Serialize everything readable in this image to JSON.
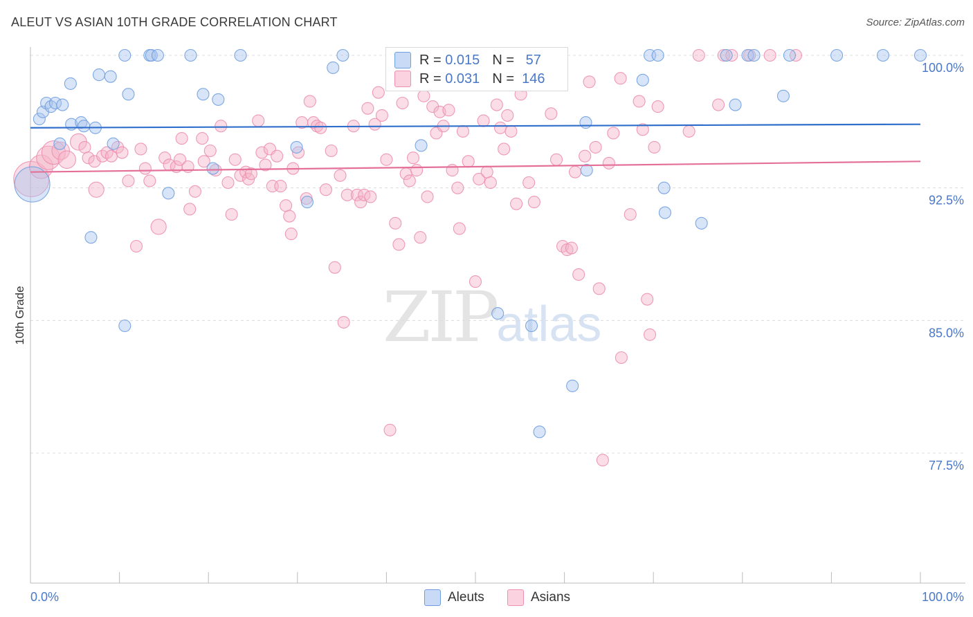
{
  "title": "ALEUT VS ASIAN 10TH GRADE CORRELATION CHART",
  "source": "Source: ZipAtlas.com",
  "watermark": {
    "zip": "ZIP",
    "atlas": "atlas"
  },
  "legend": {
    "rows": [
      {
        "r_label": "R =",
        "r_value": "0.015",
        "n_label": "N =",
        "n_value": "57",
        "color": "#a9c4ee"
      },
      {
        "r_label": "R =",
        "r_value": "0.031",
        "n_label": "N =",
        "n_value": "146",
        "color": "#f5b3c8"
      }
    ]
  },
  "bottom_legend": [
    {
      "label": "Aleuts",
      "color": "#a9c4ee"
    },
    {
      "label": "Asians",
      "color": "#f5b3c8"
    }
  ],
  "chart_data": {
    "type": "scatter",
    "title": "ALEUT VS ASIAN 10TH GRADE CORRELATION CHART",
    "xlabel": "",
    "ylabel": "10th Grade",
    "xlim": [
      0,
      100
    ],
    "ylim": [
      70.5,
      101
    ],
    "x_tick_labels": [
      "0.0%",
      "100.0%"
    ],
    "y_ticks": [
      77.5,
      85.0,
      92.5,
      100.0
    ],
    "y_tick_labels": [
      "77.5%",
      "85.0%",
      "92.5%",
      "100.0%"
    ],
    "grid": true,
    "series": [
      {
        "name": "Aleuts",
        "color": "#6f9ee0",
        "fill": "#a9c4ee",
        "trend": {
          "x": [
            0,
            100
          ],
          "y": [
            95.9,
            96.1
          ]
        },
        "points": [
          {
            "x": 0.2,
            "y": 92.7,
            "s": 3
          },
          {
            "x": 1,
            "y": 96.4
          },
          {
            "x": 1.4,
            "y": 96.8
          },
          {
            "x": 1.8,
            "y": 97.3
          },
          {
            "x": 2.3,
            "y": 97.1
          },
          {
            "x": 2.8,
            "y": 97.3
          },
          {
            "x": 3.6,
            "y": 97.2
          },
          {
            "x": 4.5,
            "y": 98.4
          },
          {
            "x": 4.6,
            "y": 96.1
          },
          {
            "x": 5.7,
            "y": 96.2
          },
          {
            "x": 6.0,
            "y": 96.0
          },
          {
            "x": 7.3,
            "y": 95.9
          },
          {
            "x": 7.7,
            "y": 98.9
          },
          {
            "x": 9.0,
            "y": 98.8
          },
          {
            "x": 3.3,
            "y": 95.0
          },
          {
            "x": 9.3,
            "y": 95.0
          },
          {
            "x": 10.6,
            "y": 100
          },
          {
            "x": 11.0,
            "y": 97.8
          },
          {
            "x": 13.4,
            "y": 100
          },
          {
            "x": 13.6,
            "y": 100
          },
          {
            "x": 14.3,
            "y": 100
          },
          {
            "x": 15.5,
            "y": 92.2
          },
          {
            "x": 18.0,
            "y": 100
          },
          {
            "x": 19.4,
            "y": 97.8
          },
          {
            "x": 20.5,
            "y": 93.6
          },
          {
            "x": 21.1,
            "y": 97.5
          },
          {
            "x": 23.6,
            "y": 100
          },
          {
            "x": 29.9,
            "y": 94.8
          },
          {
            "x": 31.1,
            "y": 91.7
          },
          {
            "x": 34.0,
            "y": 99.3
          },
          {
            "x": 35.1,
            "y": 100
          },
          {
            "x": 6.8,
            "y": 89.7
          },
          {
            "x": 10.6,
            "y": 84.7
          },
          {
            "x": 43.9,
            "y": 94.9
          },
          {
            "x": 47.0,
            "y": 100
          },
          {
            "x": 52.5,
            "y": 85.4
          },
          {
            "x": 55.8,
            "y": 100
          },
          {
            "x": 56.3,
            "y": 84.7
          },
          {
            "x": 57.2,
            "y": 78.7
          },
          {
            "x": 60.9,
            "y": 81.3
          },
          {
            "x": 62.4,
            "y": 96.2
          },
          {
            "x": 62.5,
            "y": 93.5
          },
          {
            "x": 69.6,
            "y": 100
          },
          {
            "x": 70.5,
            "y": 100
          },
          {
            "x": 68.8,
            "y": 98.6
          },
          {
            "x": 71.2,
            "y": 92.5
          },
          {
            "x": 71.3,
            "y": 91.1
          },
          {
            "x": 75.4,
            "y": 90.5
          },
          {
            "x": 78.2,
            "y": 100
          },
          {
            "x": 79.2,
            "y": 97.2
          },
          {
            "x": 80.6,
            "y": 100
          },
          {
            "x": 81.3,
            "y": 100
          },
          {
            "x": 84.6,
            "y": 97.7
          },
          {
            "x": 85.3,
            "y": 100
          },
          {
            "x": 90.6,
            "y": 100
          },
          {
            "x": 95.8,
            "y": 100
          },
          {
            "x": 100,
            "y": 100
          }
        ]
      },
      {
        "name": "Asians",
        "color": "#ec8fb0",
        "fill": "#f5b3c8",
        "trend": {
          "x": [
            0,
            100
          ],
          "y": [
            93.4,
            94.0
          ]
        },
        "points": [
          {
            "x": 0.1,
            "y": 93.0,
            "s": 3
          },
          {
            "x": 1.2,
            "y": 93.7,
            "s": 2
          },
          {
            "x": 2.0,
            "y": 94.2,
            "s": 2
          },
          {
            "x": 2.6,
            "y": 94.5,
            "s": 2
          },
          {
            "x": 3.4,
            "y": 94.6,
            "s": 1.5
          },
          {
            "x": 4.1,
            "y": 94.1,
            "s": 1.5
          },
          {
            "x": 5.4,
            "y": 95.1,
            "s": 1.4
          },
          {
            "x": 6.1,
            "y": 94.8
          },
          {
            "x": 6.5,
            "y": 94.2
          },
          {
            "x": 7.2,
            "y": 94.0
          },
          {
            "x": 7.4,
            "y": 92.4,
            "s": 1.3
          },
          {
            "x": 8.1,
            "y": 94.3
          },
          {
            "x": 8.6,
            "y": 94.5
          },
          {
            "x": 9.1,
            "y": 94.3
          },
          {
            "x": 9.8,
            "y": 94.8
          },
          {
            "x": 10.3,
            "y": 94.5
          },
          {
            "x": 11.0,
            "y": 92.9
          },
          {
            "x": 11.9,
            "y": 89.2
          },
          {
            "x": 12.4,
            "y": 94.7
          },
          {
            "x": 12.9,
            "y": 93.6
          },
          {
            "x": 13.4,
            "y": 92.9
          },
          {
            "x": 14.4,
            "y": 90.3,
            "s": 1.3
          },
          {
            "x": 15.1,
            "y": 94.2
          },
          {
            "x": 15.6,
            "y": 93.8
          },
          {
            "x": 16.4,
            "y": 93.7
          },
          {
            "x": 16.8,
            "y": 94.1
          },
          {
            "x": 17.0,
            "y": 95.3
          },
          {
            "x": 17.7,
            "y": 93.7
          },
          {
            "x": 17.9,
            "y": 91.3
          },
          {
            "x": 18.5,
            "y": 92.3
          },
          {
            "x": 19.3,
            "y": 95.3
          },
          {
            "x": 19.5,
            "y": 94.0
          },
          {
            "x": 20.2,
            "y": 94.6
          },
          {
            "x": 20.8,
            "y": 93.5
          },
          {
            "x": 21.4,
            "y": 96.0
          },
          {
            "x": 22.2,
            "y": 92.8
          },
          {
            "x": 22.6,
            "y": 91.0
          },
          {
            "x": 23.0,
            "y": 94.1
          },
          {
            "x": 23.6,
            "y": 93.2
          },
          {
            "x": 24.2,
            "y": 93.4
          },
          {
            "x": 24.5,
            "y": 93.0
          },
          {
            "x": 24.8,
            "y": 93.3
          },
          {
            "x": 25.6,
            "y": 96.3
          },
          {
            "x": 26.0,
            "y": 94.5
          },
          {
            "x": 26.4,
            "y": 93.8
          },
          {
            "x": 26.9,
            "y": 94.7
          },
          {
            "x": 27.7,
            "y": 94.3
          },
          {
            "x": 27.2,
            "y": 92.6
          },
          {
            "x": 28.1,
            "y": 92.6
          },
          {
            "x": 28.7,
            "y": 91.5
          },
          {
            "x": 29.1,
            "y": 90.9
          },
          {
            "x": 29.3,
            "y": 89.9
          },
          {
            "x": 29.5,
            "y": 93.6
          },
          {
            "x": 30.1,
            "y": 94.5
          },
          {
            "x": 30.5,
            "y": 96.2
          },
          {
            "x": 31.0,
            "y": 91.9
          },
          {
            "x": 31.4,
            "y": 97.4
          },
          {
            "x": 31.8,
            "y": 96.2
          },
          {
            "x": 32.2,
            "y": 96.0
          },
          {
            "x": 32.6,
            "y": 95.9
          },
          {
            "x": 33.2,
            "y": 92.4
          },
          {
            "x": 33.8,
            "y": 94.6
          },
          {
            "x": 34.2,
            "y": 88.0
          },
          {
            "x": 34.8,
            "y": 93.2
          },
          {
            "x": 35.2,
            "y": 84.9
          },
          {
            "x": 35.6,
            "y": 92.1
          },
          {
            "x": 36.3,
            "y": 96.0
          },
          {
            "x": 36.7,
            "y": 92.1
          },
          {
            "x": 37.1,
            "y": 91.7
          },
          {
            "x": 37.5,
            "y": 92.1
          },
          {
            "x": 37.9,
            "y": 97.0
          },
          {
            "x": 38.2,
            "y": 92.0
          },
          {
            "x": 38.7,
            "y": 96.1
          },
          {
            "x": 39.1,
            "y": 97.9
          },
          {
            "x": 39.5,
            "y": 96.6
          },
          {
            "x": 40.0,
            "y": 94.1
          },
          {
            "x": 40.4,
            "y": 78.8
          },
          {
            "x": 41.0,
            "y": 90.5
          },
          {
            "x": 41.4,
            "y": 89.3
          },
          {
            "x": 41.8,
            "y": 97.3
          },
          {
            "x": 42.2,
            "y": 93.3
          },
          {
            "x": 42.6,
            "y": 92.9
          },
          {
            "x": 43.0,
            "y": 94.2
          },
          {
            "x": 43.4,
            "y": 93.5
          },
          {
            "x": 43.8,
            "y": 89.7
          },
          {
            "x": 44.2,
            "y": 97.7
          },
          {
            "x": 44.6,
            "y": 92.0
          },
          {
            "x": 45.2,
            "y": 97.1
          },
          {
            "x": 45.6,
            "y": 95.6
          },
          {
            "x": 46.0,
            "y": 96.8
          },
          {
            "x": 46.4,
            "y": 96.0
          },
          {
            "x": 47.0,
            "y": 96.9
          },
          {
            "x": 47.4,
            "y": 93.5
          },
          {
            "x": 48.0,
            "y": 92.5
          },
          {
            "x": 48.2,
            "y": 90.2
          },
          {
            "x": 48.6,
            "y": 95.7
          },
          {
            "x": 49.2,
            "y": 94.0
          },
          {
            "x": 50.0,
            "y": 87.2
          },
          {
            "x": 50.4,
            "y": 93.0
          },
          {
            "x": 50.9,
            "y": 96.3
          },
          {
            "x": 51.3,
            "y": 93.4
          },
          {
            "x": 51.7,
            "y": 92.8
          },
          {
            "x": 52.4,
            "y": 97.2
          },
          {
            "x": 52.8,
            "y": 95.9
          },
          {
            "x": 53.2,
            "y": 94.7
          },
          {
            "x": 53.6,
            "y": 96.6
          },
          {
            "x": 54.0,
            "y": 95.7
          },
          {
            "x": 54.6,
            "y": 91.6
          },
          {
            "x": 55.1,
            "y": 97.8
          },
          {
            "x": 55.3,
            "y": 98.3
          },
          {
            "x": 56.0,
            "y": 92.8
          },
          {
            "x": 56.6,
            "y": 91.7
          },
          {
            "x": 58.5,
            "y": 96.7
          },
          {
            "x": 59.1,
            "y": 94.1
          },
          {
            "x": 59.8,
            "y": 89.2
          },
          {
            "x": 60.3,
            "y": 89.0
          },
          {
            "x": 60.8,
            "y": 89.1
          },
          {
            "x": 61.2,
            "y": 93.4
          },
          {
            "x": 61.6,
            "y": 87.6
          },
          {
            "x": 62.3,
            "y": 94.3
          },
          {
            "x": 62.8,
            "y": 98.5
          },
          {
            "x": 63.5,
            "y": 94.8
          },
          {
            "x": 63.9,
            "y": 86.8
          },
          {
            "x": 64.3,
            "y": 77.1
          },
          {
            "x": 65.0,
            "y": 93.9
          },
          {
            "x": 65.5,
            "y": 95.6
          },
          {
            "x": 66.3,
            "y": 98.7
          },
          {
            "x": 66.4,
            "y": 82.9
          },
          {
            "x": 67.4,
            "y": 91.0
          },
          {
            "x": 68.4,
            "y": 97.4
          },
          {
            "x": 68.8,
            "y": 95.8
          },
          {
            "x": 69.3,
            "y": 86.2
          },
          {
            "x": 69.6,
            "y": 84.2
          },
          {
            "x": 70.1,
            "y": 94.8
          },
          {
            "x": 70.5,
            "y": 97.1
          },
          {
            "x": 74.0,
            "y": 95.7
          },
          {
            "x": 75.1,
            "y": 100
          },
          {
            "x": 77.3,
            "y": 97.2
          },
          {
            "x": 77.9,
            "y": 100
          },
          {
            "x": 78.8,
            "y": 100
          },
          {
            "x": 80.8,
            "y": 100
          },
          {
            "x": 83.1,
            "y": 100
          },
          {
            "x": 86.0,
            "y": 100
          }
        ]
      }
    ]
  }
}
